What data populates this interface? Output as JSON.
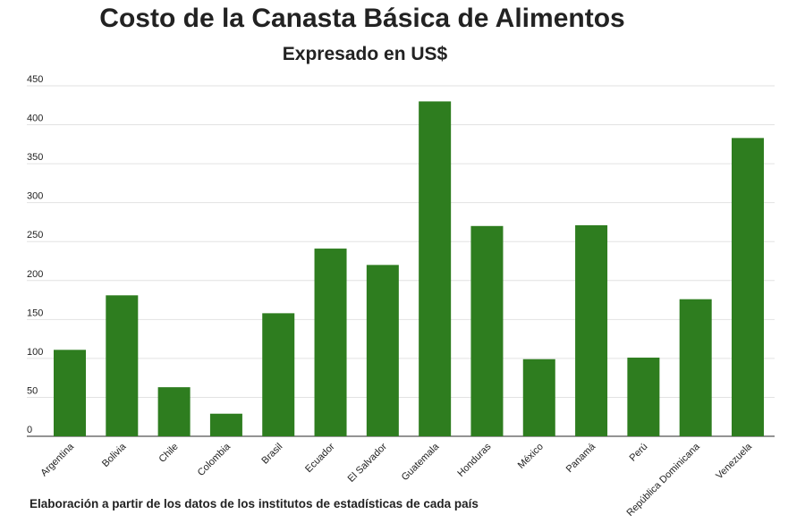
{
  "title": "Costo de la Canasta Básica de Alimentos",
  "subtitle": "Expresado en US$",
  "footnote": "Elaboración a partir de los datos de los institutos de estadísticas de cada país",
  "colors": {
    "bar": "#2e7d1f",
    "grid": "#e2e2e2",
    "axis": "#555555",
    "text": "#222222"
  },
  "chart_data": {
    "type": "bar",
    "title": "Costo de la Canasta Básica de Alimentos",
    "subtitle": "Expresado en US$",
    "xlabel": "",
    "ylabel": "",
    "ylim": [
      0,
      450
    ],
    "yticks": [
      0,
      50,
      100,
      150,
      200,
      250,
      300,
      350,
      400,
      450
    ],
    "grid": true,
    "legend": "none",
    "categories": [
      "Argentina",
      "Bolivia",
      "Chile",
      "Colombia",
      "Brasil",
      "Ecuador",
      "El Salvador",
      "Guatemala",
      "Honduras",
      "México",
      "Panamá",
      "Perú",
      "República Dominicana",
      "Venezuela"
    ],
    "values": [
      111,
      181,
      63,
      29,
      158,
      241,
      220,
      430,
      270,
      99,
      271,
      101,
      176,
      383
    ]
  }
}
